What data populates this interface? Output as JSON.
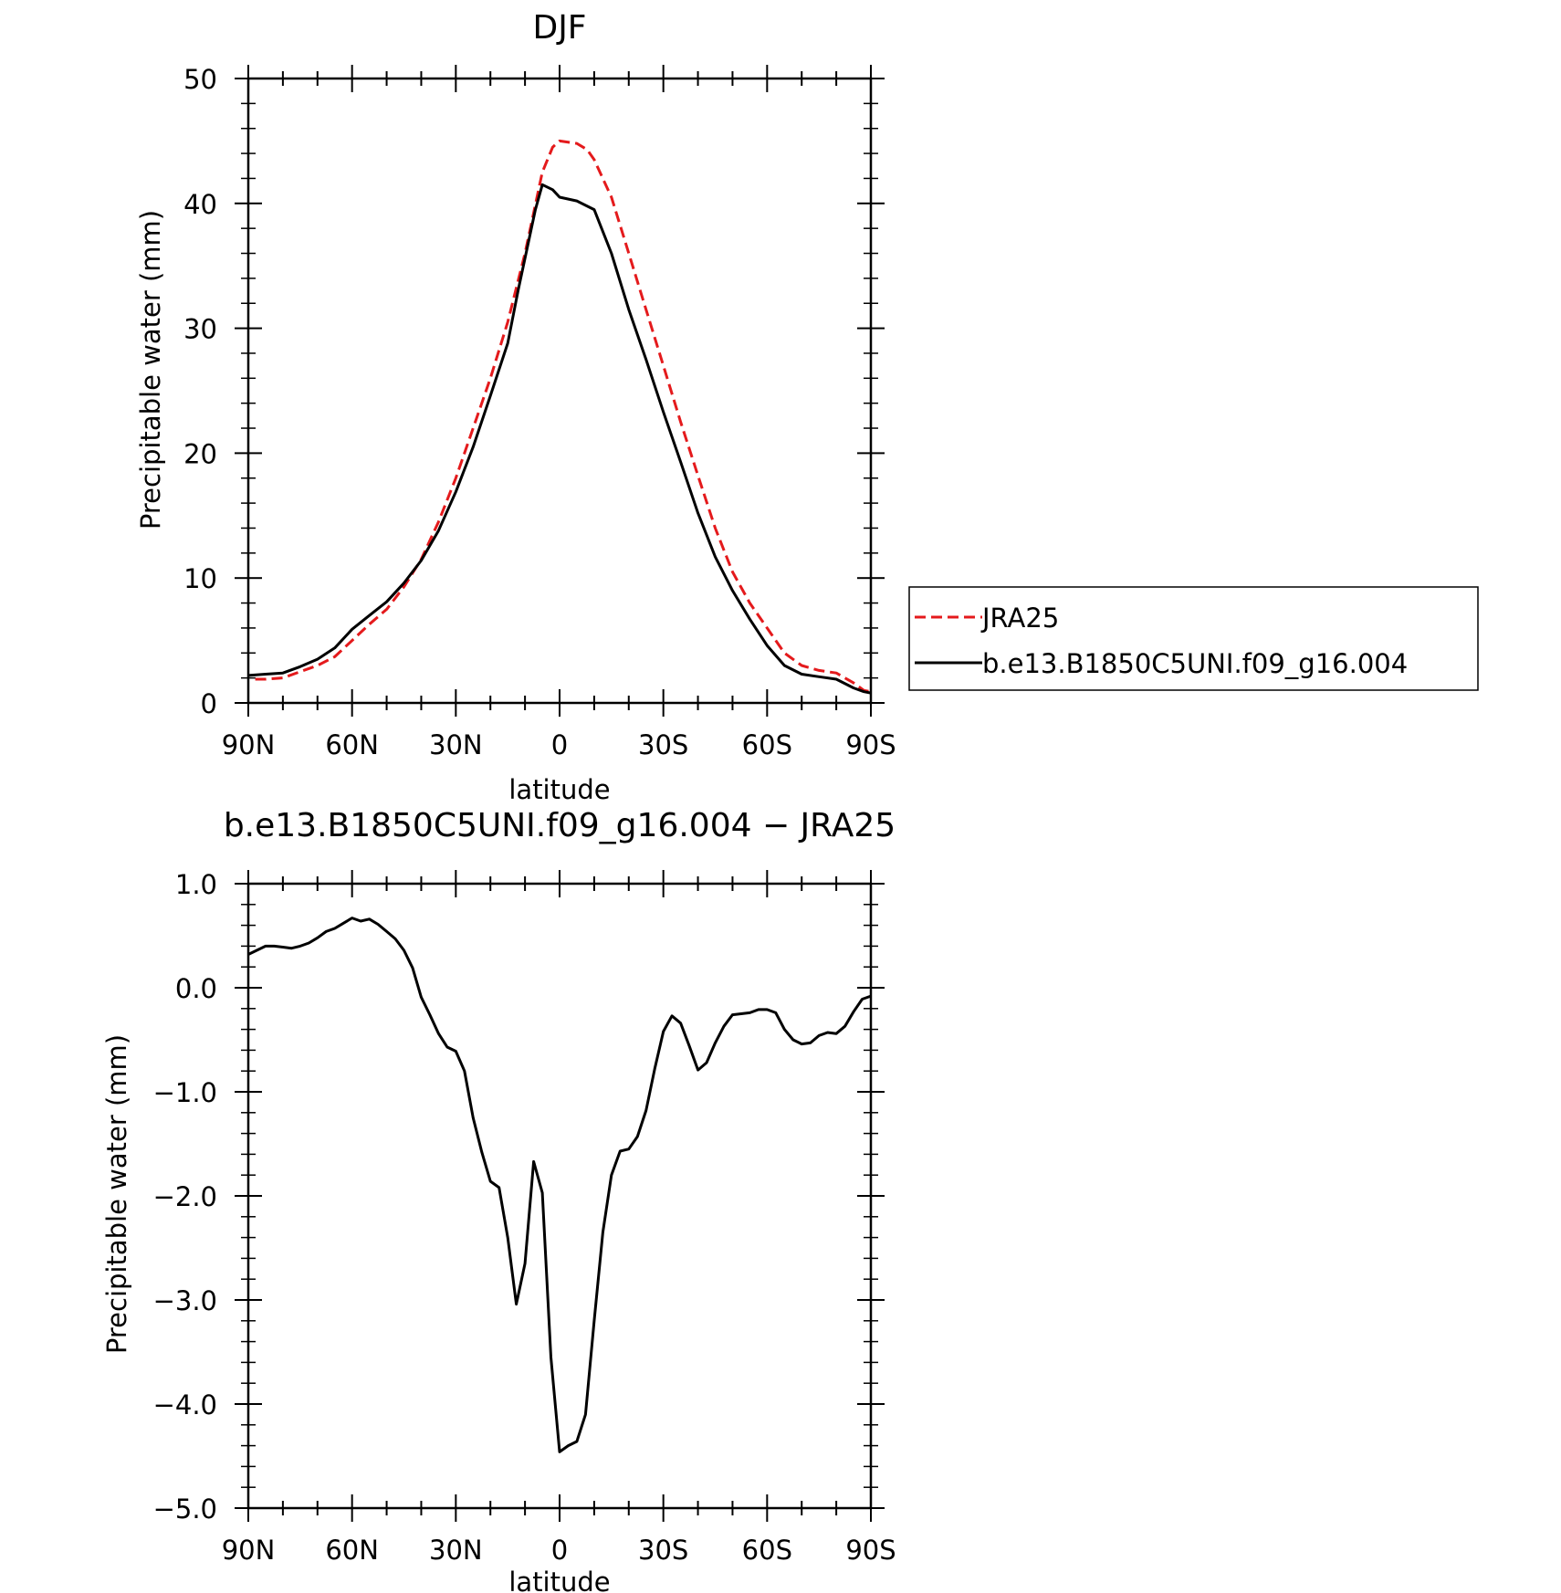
{
  "chart_data": [
    {
      "type": "line",
      "title": "DJF",
      "xlabel": "latitude",
      "ylabel": "Precipitable water (mm)",
      "xlim": [
        90,
        -90
      ],
      "ylim": [
        0,
        50
      ],
      "x_ticks": [
        90,
        60,
        30,
        0,
        -30,
        -60,
        -90
      ],
      "x_tick_labels": [
        "90N",
        "60N",
        "30N",
        "0",
        "30S",
        "60S",
        "90S"
      ],
      "y_ticks": [
        0,
        10,
        20,
        30,
        40,
        50
      ],
      "y_tick_labels": [
        "0",
        "10",
        "20",
        "30",
        "40",
        "50"
      ],
      "legend": {
        "placement": "right",
        "entries": [
          "JRA25",
          "b.e13.B1850C5UNI.f09_g16.004"
        ]
      },
      "series": [
        {
          "name": "JRA25",
          "color": "#e41a1c",
          "dash": "dashed",
          "x": [
            88,
            85,
            80,
            75,
            70,
            65,
            60,
            55,
            50,
            45,
            40,
            35,
            30,
            25,
            20,
            15,
            10,
            5,
            2,
            0,
            -5,
            -8,
            -10,
            -15,
            -20,
            -25,
            -30,
            -35,
            -40,
            -45,
            -50,
            -55,
            -60,
            -65,
            -70,
            -75,
            -80,
            -85,
            -88,
            -90
          ],
          "y": [
            1.9,
            1.9,
            2.0,
            2.5,
            3.0,
            3.7,
            5.0,
            6.3,
            7.5,
            9.3,
            11.5,
            14.5,
            18.0,
            22.0,
            26.0,
            30.5,
            36.0,
            42.5,
            44.5,
            45.0,
            44.8,
            44.3,
            43.5,
            40.5,
            36.0,
            31.5,
            27.0,
            22.5,
            18.2,
            14.0,
            10.5,
            8.0,
            6.0,
            4.0,
            3.0,
            2.6,
            2.4,
            1.6,
            1.0,
            0.9
          ]
        },
        {
          "name": "b.e13.B1850C5UNI.f09_g16.004",
          "color": "#000000",
          "dash": "solid",
          "x": [
            90,
            85,
            80,
            75,
            70,
            65,
            60,
            55,
            50,
            45,
            40,
            35,
            30,
            25,
            20,
            15,
            12,
            7,
            5,
            2,
            0,
            -5,
            -10,
            -15,
            -20,
            -25,
            -30,
            -35,
            -40,
            -45,
            -50,
            -55,
            -60,
            -65,
            -70,
            -75,
            -80,
            -85,
            -88,
            -90
          ],
          "y": [
            2.2,
            2.3,
            2.4,
            2.9,
            3.5,
            4.4,
            5.9,
            7.0,
            8.1,
            9.6,
            11.4,
            13.8,
            16.9,
            20.5,
            24.6,
            28.8,
            33.0,
            39.5,
            41.5,
            41.1,
            40.5,
            40.2,
            39.5,
            36.0,
            31.5,
            27.5,
            23.3,
            19.3,
            15.2,
            11.7,
            9.0,
            6.7,
            4.6,
            3.0,
            2.3,
            2.1,
            1.9,
            1.2,
            0.9,
            0.8
          ]
        }
      ]
    },
    {
      "type": "line",
      "title": "b.e13.B1850C5UNI.f09_g16.004 − JRA25",
      "xlabel": "latitude",
      "ylabel": "Precipitable water (mm)",
      "xlim": [
        90,
        -90
      ],
      "ylim": [
        -5,
        1
      ],
      "x_ticks": [
        90,
        60,
        30,
        0,
        -30,
        -60,
        -90
      ],
      "x_tick_labels": [
        "90N",
        "60N",
        "30N",
        "0",
        "30S",
        "60S",
        "90S"
      ],
      "y_ticks": [
        1,
        0,
        -1,
        -2,
        -3,
        -4,
        -5
      ],
      "y_tick_labels": [
        "1.0",
        "0.0",
        "−1.0",
        "−2.0",
        "−3.0",
        "−4.0",
        "−5.0"
      ],
      "series": [
        {
          "color": "#000000",
          "dash": "solid",
          "x": [
            90,
            85,
            82.5,
            80,
            77.5,
            75,
            72.5,
            70,
            67.5,
            65,
            62.5,
            60,
            57.5,
            55,
            52.5,
            50,
            47.5,
            45,
            42.5,
            40,
            37.5,
            35,
            32.5,
            30,
            27.5,
            25,
            22.5,
            20,
            17.5,
            15,
            12.5,
            10,
            7.5,
            5,
            2.5,
            0,
            -2.5,
            -5,
            -7.5,
            -10,
            -12.5,
            -15,
            -17.5,
            -20,
            -22.5,
            -25,
            -27.5,
            -30,
            -32.5,
            -35,
            -37.5,
            -40,
            -42.5,
            -45,
            -47.5,
            -50,
            -52.5,
            -55,
            -57.5,
            -60,
            -62.5,
            -65,
            -67.5,
            -70,
            -72.5,
            -75,
            -77.5,
            -80,
            -82.5,
            -85,
            -87.5,
            -90
          ],
          "y": [
            0.32,
            0.4,
            0.4,
            0.39,
            0.38,
            0.4,
            0.43,
            0.48,
            0.54,
            0.57,
            0.62,
            0.67,
            0.64,
            0.66,
            0.61,
            0.54,
            0.47,
            0.36,
            0.19,
            -0.09,
            -0.26,
            -0.44,
            -0.57,
            -0.61,
            -0.8,
            -1.25,
            -1.58,
            -1.86,
            -1.92,
            -2.4,
            -3.04,
            -2.65,
            -1.67,
            -1.97,
            -3.55,
            -4.46,
            -4.4,
            -4.36,
            -4.1,
            -3.2,
            -2.35,
            -1.8,
            -1.57,
            -1.55,
            -1.43,
            -1.18,
            -0.78,
            -0.42,
            -0.27,
            -0.34,
            -0.56,
            -0.79,
            -0.72,
            -0.53,
            -0.37,
            -0.26,
            -0.25,
            -0.24,
            -0.21,
            -0.21,
            -0.24,
            -0.4,
            -0.5,
            -0.54,
            -0.53,
            -0.46,
            -0.43,
            -0.44,
            -0.37,
            -0.23,
            -0.11,
            -0.08
          ]
        }
      ]
    }
  ]
}
